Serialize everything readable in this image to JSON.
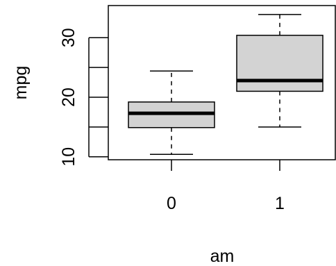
{
  "chart_data": {
    "type": "boxplot",
    "title": "",
    "xlabel": "am",
    "ylabel": "mpg",
    "categories": [
      "0",
      "1"
    ],
    "boxes": [
      {
        "category": "0",
        "whisker_low": 10.4,
        "q1": 14.9,
        "median": 17.3,
        "q3": 19.2,
        "whisker_high": 24.4,
        "outliers": []
      },
      {
        "category": "1",
        "whisker_low": 15.0,
        "q1": 21.0,
        "median": 22.8,
        "q3": 30.4,
        "whisker_high": 33.9,
        "outliers": []
      }
    ],
    "yticks": [
      "10",
      "15",
      "20",
      "25",
      "30"
    ],
    "ytick_values": [
      10,
      15,
      20,
      25,
      30
    ],
    "ylim": [
      9.5,
      35.4
    ],
    "box_fill": "#d3d3d3",
    "grid": false
  }
}
